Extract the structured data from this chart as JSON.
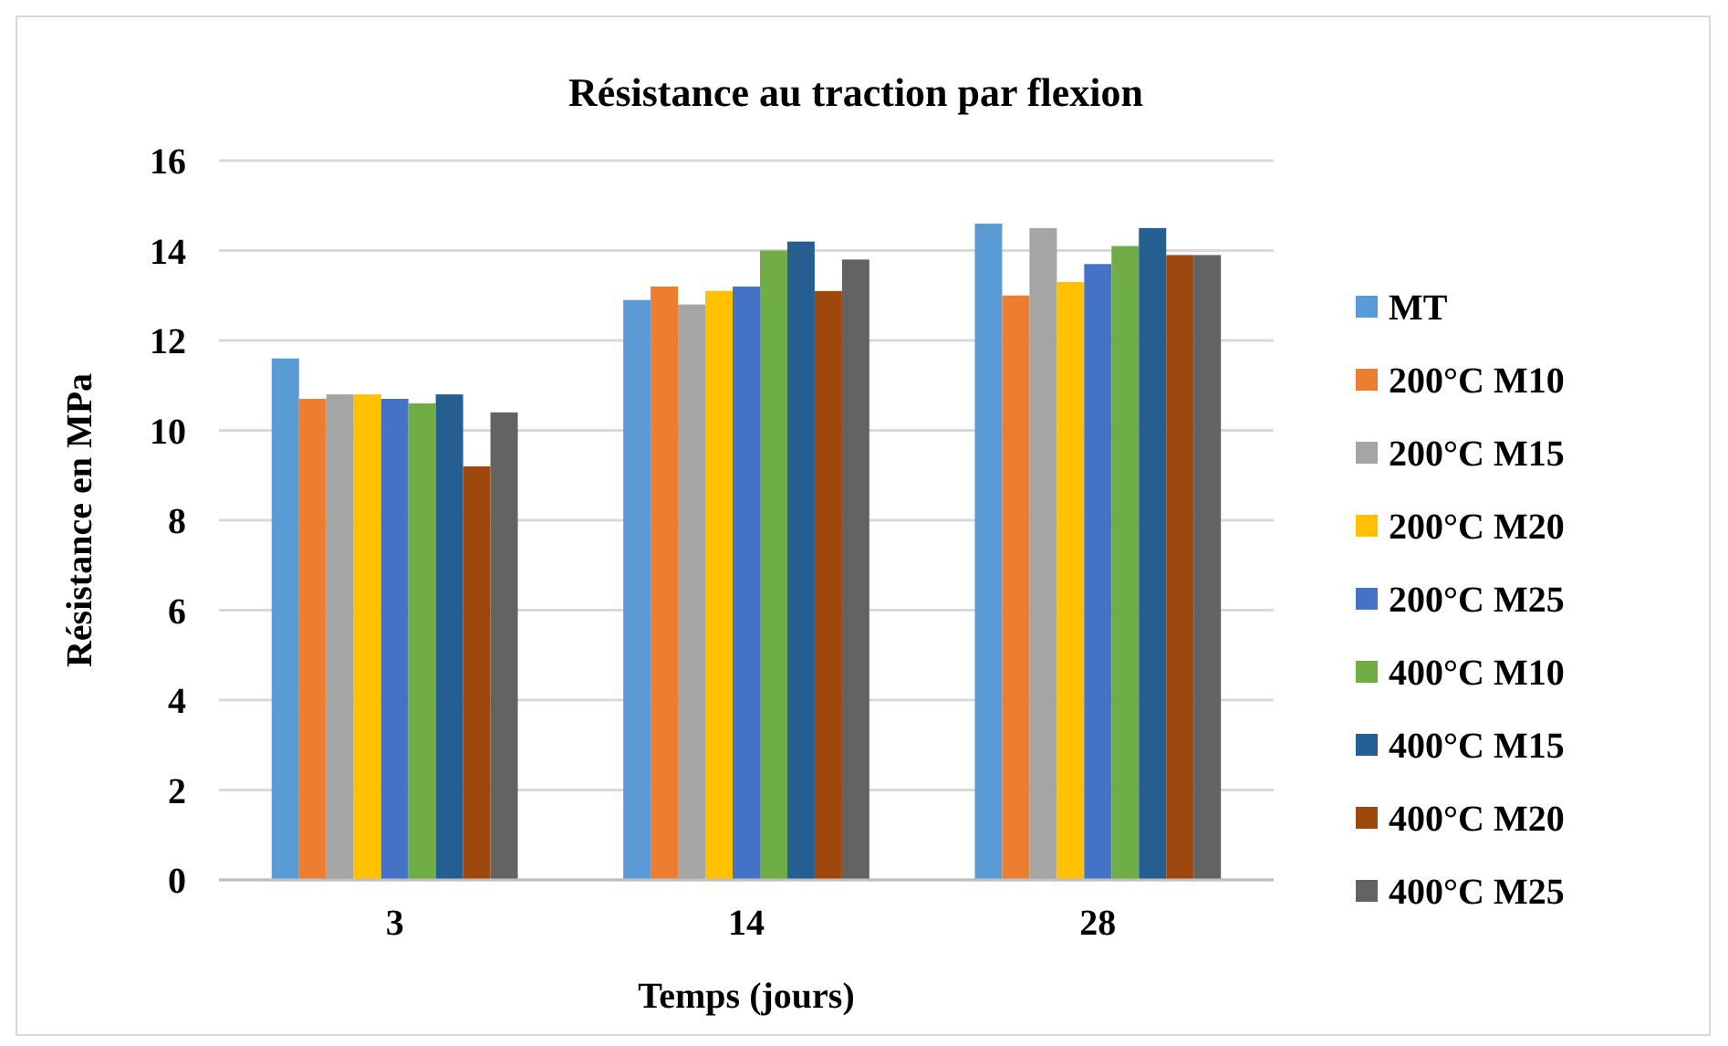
{
  "chart_data": {
    "type": "bar",
    "title": "Résistance au traction par flexion",
    "xlabel": "Temps (jours)",
    "ylabel": "Résistance en MPa",
    "categories": [
      "3",
      "14",
      "28"
    ],
    "series": [
      {
        "name": "MT",
        "color": "#5b9bd5",
        "values": [
          11.6,
          12.9,
          14.6
        ]
      },
      {
        "name": "200°C M10",
        "color": "#ed7d31",
        "values": [
          10.7,
          13.2,
          13.0
        ]
      },
      {
        "name": "200°C M15",
        "color": "#a5a5a5",
        "values": [
          10.8,
          12.8,
          14.5
        ]
      },
      {
        "name": "200°C M20",
        "color": "#ffc000",
        "values": [
          10.8,
          13.1,
          13.3
        ]
      },
      {
        "name": "200°C M25",
        "color": "#4472c4",
        "values": [
          10.7,
          13.2,
          13.7
        ]
      },
      {
        "name": "400°C M10",
        "color": "#70ad47",
        "values": [
          10.6,
          14.0,
          14.1
        ]
      },
      {
        "name": "400°C M15",
        "color": "#255e91",
        "values": [
          10.8,
          14.2,
          14.5
        ]
      },
      {
        "name": "400°C M20",
        "color": "#9e480e",
        "values": [
          9.2,
          13.1,
          13.9
        ]
      },
      {
        "name": "400°C M25",
        "color": "#636363",
        "values": [
          10.4,
          13.8,
          13.9
        ]
      }
    ],
    "ylim": [
      0,
      16
    ],
    "yticks": [
      0,
      2,
      4,
      6,
      8,
      10,
      12,
      14,
      16
    ],
    "grid": "y",
    "legend": "right"
  }
}
